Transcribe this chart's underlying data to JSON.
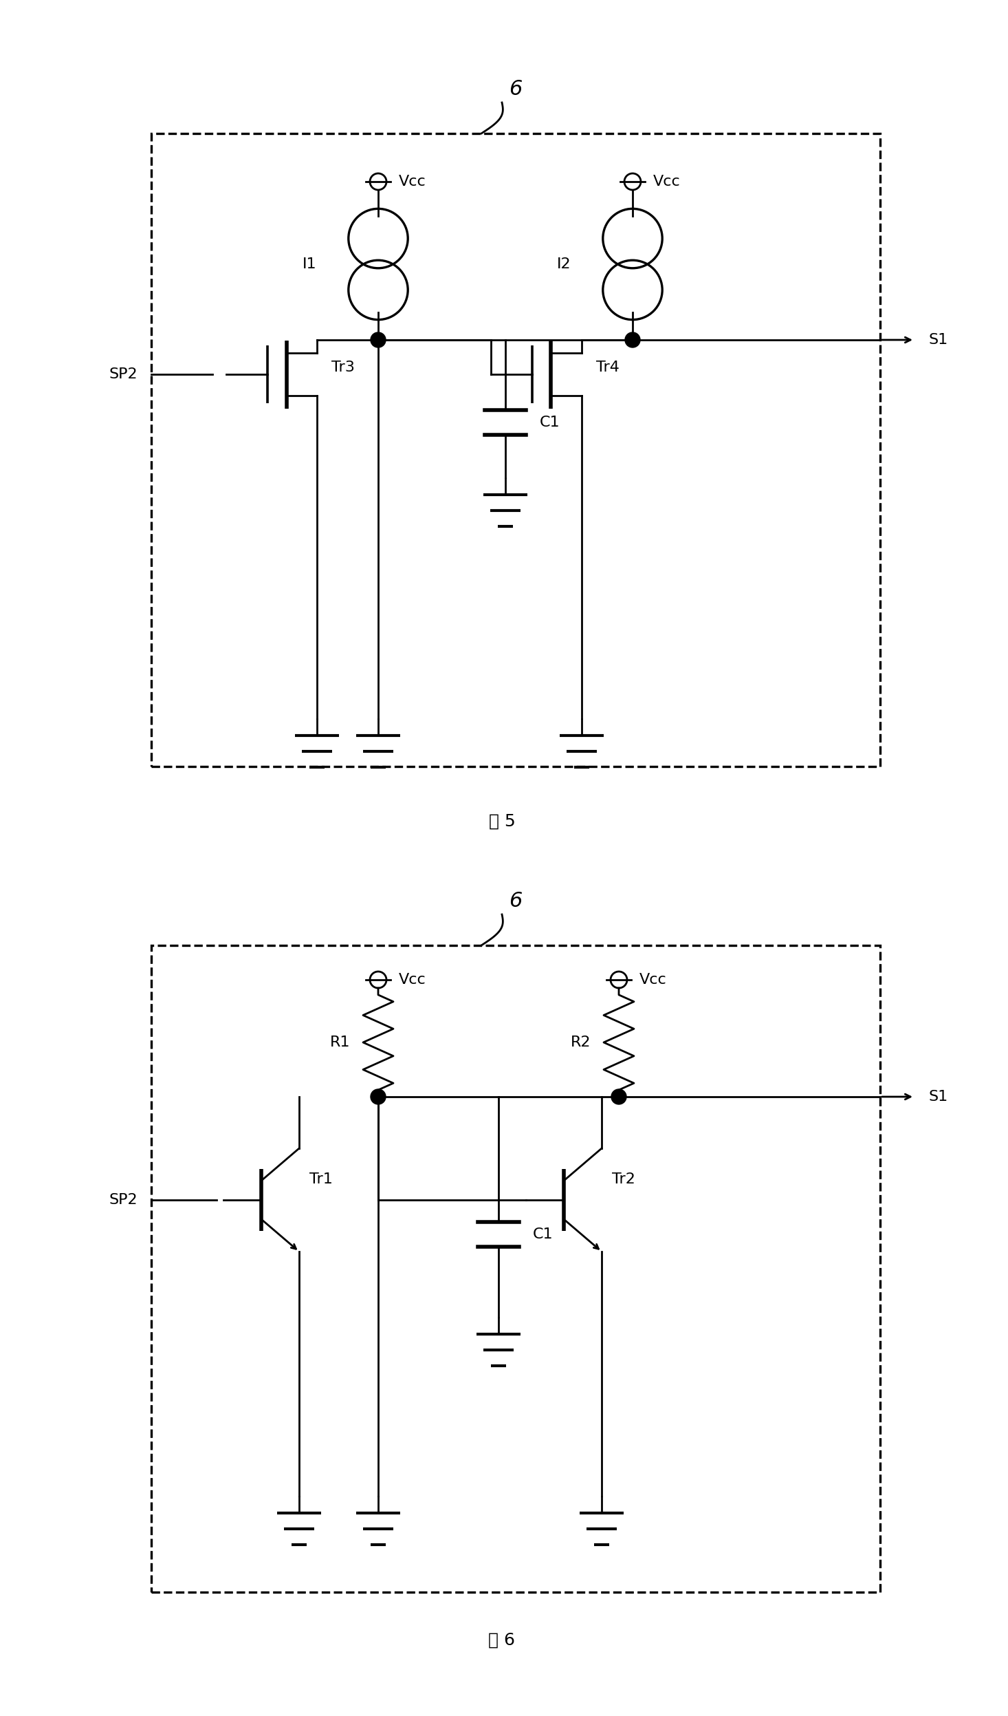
{
  "bg_color": "#ffffff",
  "line_color": "#000000",
  "fig5_label": "图 5",
  "fig6_label": "图 6",
  "ref6_label": "6",
  "vcc_label": "Vcc",
  "sp2_label": "SP2",
  "s1_label": "S1",
  "i1_label": "I1",
  "i2_label": "I2",
  "tr3_label": "Tr3",
  "tr4_label": "Tr4",
  "c1_label": "C1",
  "r1_label": "R1",
  "r2_label": "R2",
  "tr1_label": "Tr1",
  "tr2_label": "Tr2",
  "lw": 2.0,
  "fs": 16
}
